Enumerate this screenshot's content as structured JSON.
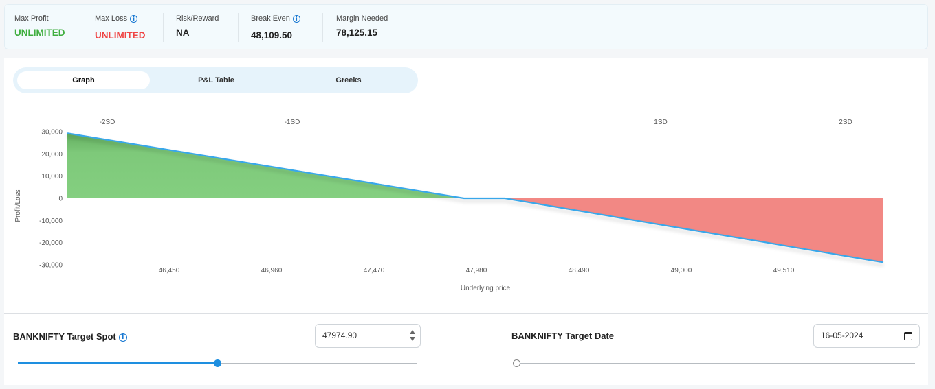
{
  "summary": {
    "max_profit": {
      "label": "Max Profit",
      "value": "UNLIMITED",
      "color": "#3fae3f"
    },
    "max_loss": {
      "label": "Max Loss",
      "value": "UNLIMITED",
      "color": "#ef4444"
    },
    "risk_reward": {
      "label": "Risk/Reward",
      "value": "NA"
    },
    "break_even": {
      "label": "Break Even",
      "value": "48,109.50"
    },
    "margin_needed": {
      "label": "Margin Needed",
      "value": "78,125.15"
    },
    "info_glyph": "i"
  },
  "tabs": [
    {
      "label": "Graph",
      "active": true
    },
    {
      "label": "P&L Table",
      "active": false
    },
    {
      "label": "Greeks",
      "active": false
    }
  ],
  "chart_data": {
    "type": "area",
    "xlabel": "Underlying price",
    "ylabel": "Profit/Loss",
    "x_ticks": [
      "46,450",
      "46,960",
      "47,470",
      "47,980",
      "48,490",
      "49,000",
      "49,510"
    ],
    "y_ticks": [
      "30,000",
      "20,000",
      "10,000",
      "0",
      "-10,000",
      "-20,000",
      "-30,000"
    ],
    "sd_labels": [
      "-2SD",
      "-1SD",
      "1SD",
      "2SD"
    ],
    "series": [
      {
        "values": [
          [
            45940,
            29300
          ],
          [
            47913,
            0
          ],
          [
            48117,
            0
          ],
          [
            50000,
            -28900
          ]
        ]
      }
    ],
    "xlim": [
      45940,
      50000
    ],
    "ylim": [
      -30000,
      30000
    ],
    "profit_color": "#7ec97a",
    "loss_color": "#f28884",
    "line_color": "#39a7ea"
  },
  "target_spot": {
    "label": "BANKNIFTY Target Spot",
    "value": "47974.90",
    "slider_fraction": 0.5
  },
  "target_date": {
    "label": "BANKNIFTY Target Date",
    "value": "16-05-2024",
    "slider_fraction": 0.0
  }
}
